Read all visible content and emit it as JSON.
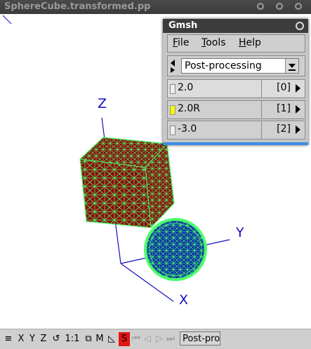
{
  "main_window": {
    "title": "SphereCube.transformed.pp"
  },
  "axes": {
    "x_label": "X",
    "y_label": "Y",
    "z_label": "Z"
  },
  "statusbar": {
    "items": [
      "X",
      "Y",
      "Z",
      "1:1",
      "M",
      "S"
    ],
    "module_text": "Post-processing",
    "module_visible": "Post-pro",
    "s_color": "#e0160f"
  },
  "gmsh": {
    "title": "Gmsh",
    "menus": [
      {
        "label": "File",
        "accel": "F"
      },
      {
        "label": "Tools",
        "accel": "T"
      },
      {
        "label": "Help",
        "accel": "H"
      }
    ],
    "module_select": "Post-processing",
    "views": [
      {
        "name": "2.0",
        "index": "[0]",
        "checked": false
      },
      {
        "name": "2.0R",
        "index": "[1]",
        "checked": true
      },
      {
        "name": "-3.0",
        "index": "[2]",
        "checked": false
      }
    ]
  },
  "colors": {
    "cube_fill": "#8b0e0e",
    "sphere_fill": "#0d2fa8",
    "mesh_lines": "#4cff6a",
    "axis": "#1010c0",
    "highlight": "#f7f700"
  }
}
